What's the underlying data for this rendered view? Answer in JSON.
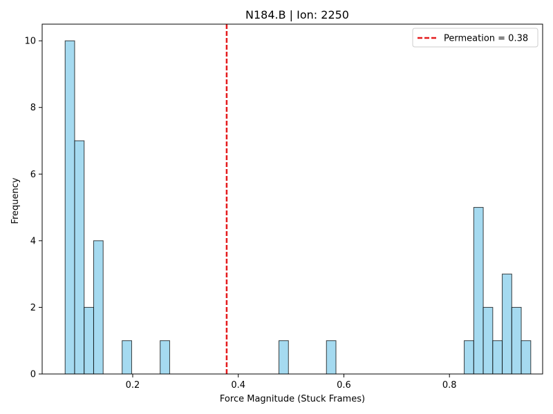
{
  "chart_data": {
    "type": "bar",
    "title": "N184.B | Ion: 2250",
    "xlabel": "Force Magnitude (Stuck Frames)",
    "ylabel": "Frequency",
    "xlim": [
      0.0285,
      0.9765
    ],
    "ylim": [
      0,
      10.5
    ],
    "xticks": [
      0.2,
      0.4,
      0.6,
      0.8
    ],
    "yticks": [
      0,
      2,
      4,
      6,
      8,
      10
    ],
    "xtick_labels": [
      "0.2",
      "0.4",
      "0.6",
      "0.8"
    ],
    "ytick_labels": [
      "0",
      "2",
      "4",
      "6",
      "8",
      "10"
    ],
    "grid": false,
    "bin_width": 0.018,
    "bins": [
      {
        "start": 0.072,
        "count": 10
      },
      {
        "start": 0.09,
        "count": 7
      },
      {
        "start": 0.108,
        "count": 2
      },
      {
        "start": 0.126,
        "count": 4
      },
      {
        "start": 0.18,
        "count": 1
      },
      {
        "start": 0.252,
        "count": 1
      },
      {
        "start": 0.477,
        "count": 1
      },
      {
        "start": 0.567,
        "count": 1
      },
      {
        "start": 0.828,
        "count": 1
      },
      {
        "start": 0.846,
        "count": 5
      },
      {
        "start": 0.864,
        "count": 2
      },
      {
        "start": 0.882,
        "count": 1
      },
      {
        "start": 0.9,
        "count": 3
      },
      {
        "start": 0.918,
        "count": 2
      },
      {
        "start": 0.936,
        "count": 1
      }
    ],
    "bar_color": "#87CEEB",
    "bar_edge_color": "#000000",
    "reference_line": {
      "x": 0.378,
      "label": "Permeation = 0.38",
      "color": "#e41a1c",
      "style": "dashed"
    },
    "legend_position": "top-right"
  }
}
